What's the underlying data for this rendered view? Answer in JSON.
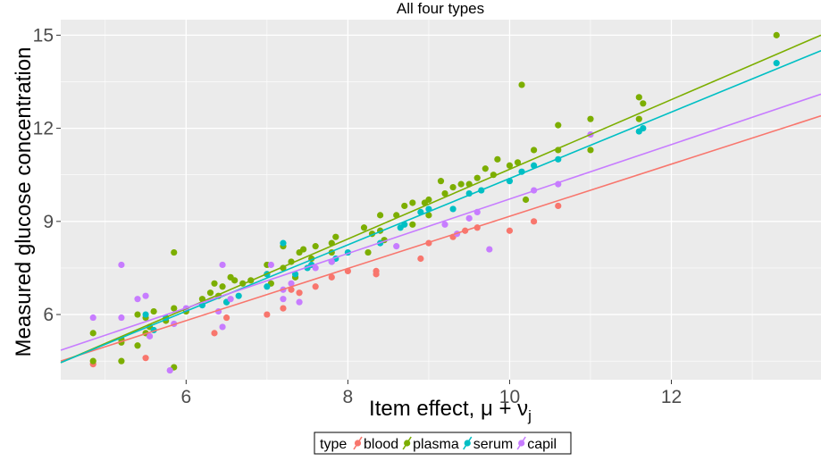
{
  "chart_data": {
    "type": "scatter",
    "title": "All four types",
    "xlabel": "Item effect, μ + ν",
    "xlabel_subscript": "j",
    "ylabel": "Measured glucose concentration",
    "xlim": [
      4.45,
      13.85
    ],
    "ylim": [
      3.9,
      15.5
    ],
    "xticks": [
      6,
      8,
      10,
      12
    ],
    "xtick_labels": [
      "6",
      "8",
      "10",
      "12"
    ],
    "yticks": [
      6,
      9,
      12,
      15
    ],
    "ytick_labels": [
      "6",
      "9",
      "12",
      "15"
    ],
    "grid": true,
    "legend": {
      "position": "bottom",
      "title": "type",
      "entries": [
        "blood",
        "plasma",
        "serum",
        "capil"
      ]
    },
    "series": [
      {
        "name": "blood",
        "color": "#F8766D",
        "fit": [
          [
            4.45,
            4.5
          ],
          [
            13.85,
            12.4
          ]
        ],
        "points": [
          [
            4.85,
            4.4
          ],
          [
            5.5,
            4.6
          ],
          [
            6.35,
            5.4
          ],
          [
            6.5,
            5.9
          ],
          [
            7.0,
            6.0
          ],
          [
            7.2,
            6.2
          ],
          [
            7.3,
            6.8
          ],
          [
            7.4,
            6.7
          ],
          [
            7.6,
            6.9
          ],
          [
            7.8,
            7.2
          ],
          [
            8.0,
            7.4
          ],
          [
            8.35,
            7.4
          ],
          [
            8.35,
            7.3
          ],
          [
            8.9,
            7.8
          ],
          [
            9.0,
            8.3
          ],
          [
            9.3,
            8.5
          ],
          [
            9.45,
            8.7
          ],
          [
            9.6,
            8.8
          ],
          [
            10.0,
            8.7
          ],
          [
            10.3,
            9.0
          ],
          [
            10.6,
            9.5
          ]
        ]
      },
      {
        "name": "plasma",
        "color": "#7CAE00",
        "fit": [
          [
            4.45,
            4.45
          ],
          [
            13.85,
            15.0
          ]
        ],
        "points": [
          [
            4.85,
            4.5
          ],
          [
            4.85,
            5.4
          ],
          [
            5.2,
            5.1
          ],
          [
            5.2,
            4.5
          ],
          [
            5.2,
            5.2
          ],
          [
            5.4,
            5.0
          ],
          [
            5.4,
            6.0
          ],
          [
            5.5,
            5.4
          ],
          [
            5.5,
            5.9
          ],
          [
            5.55,
            5.6
          ],
          [
            5.6,
            6.1
          ],
          [
            5.75,
            5.8
          ],
          [
            5.85,
            6.2
          ],
          [
            5.85,
            8.0
          ],
          [
            5.85,
            4.3
          ],
          [
            6.0,
            6.1
          ],
          [
            6.2,
            6.5
          ],
          [
            6.3,
            6.7
          ],
          [
            6.35,
            7.0
          ],
          [
            6.4,
            6.6
          ],
          [
            6.45,
            6.9
          ],
          [
            6.5,
            6.4
          ],
          [
            6.55,
            7.2
          ],
          [
            6.6,
            7.1
          ],
          [
            6.7,
            7.0
          ],
          [
            6.8,
            7.1
          ],
          [
            7.0,
            7.3
          ],
          [
            7.0,
            7.6
          ],
          [
            7.05,
            7.0
          ],
          [
            7.2,
            7.5
          ],
          [
            7.2,
            8.2
          ],
          [
            7.3,
            7.7
          ],
          [
            7.35,
            7.2
          ],
          [
            7.4,
            8.0
          ],
          [
            7.45,
            8.1
          ],
          [
            7.55,
            7.8
          ],
          [
            7.6,
            8.2
          ],
          [
            7.8,
            8.3
          ],
          [
            7.8,
            8.0
          ],
          [
            7.85,
            8.5
          ],
          [
            8.2,
            8.8
          ],
          [
            8.25,
            8.0
          ],
          [
            8.3,
            8.6
          ],
          [
            8.4,
            8.7
          ],
          [
            8.4,
            9.2
          ],
          [
            8.45,
            8.4
          ],
          [
            8.6,
            9.2
          ],
          [
            8.7,
            9.5
          ],
          [
            8.8,
            9.6
          ],
          [
            8.8,
            8.9
          ],
          [
            8.95,
            9.6
          ],
          [
            9.0,
            9.2
          ],
          [
            9.0,
            9.7
          ],
          [
            9.15,
            10.3
          ],
          [
            9.2,
            9.9
          ],
          [
            9.3,
            10.1
          ],
          [
            9.4,
            10.2
          ],
          [
            9.5,
            10.2
          ],
          [
            9.6,
            10.4
          ],
          [
            9.7,
            10.7
          ],
          [
            9.8,
            10.5
          ],
          [
            9.85,
            11.0
          ],
          [
            10.0,
            10.8
          ],
          [
            10.1,
            10.9
          ],
          [
            10.15,
            13.4
          ],
          [
            10.2,
            9.7
          ],
          [
            10.3,
            11.3
          ],
          [
            10.6,
            12.1
          ],
          [
            10.6,
            11.3
          ],
          [
            11.0,
            12.3
          ],
          [
            11.0,
            11.3
          ],
          [
            11.6,
            13.0
          ],
          [
            11.6,
            12.3
          ],
          [
            11.65,
            12.8
          ],
          [
            13.3,
            15.0
          ]
        ]
      },
      {
        "name": "serum",
        "color": "#00BFC4",
        "fit": [
          [
            4.45,
            4.45
          ],
          [
            13.85,
            14.5
          ]
        ],
        "points": [
          [
            5.5,
            6.0
          ],
          [
            5.6,
            5.5
          ],
          [
            5.75,
            5.9
          ],
          [
            6.2,
            6.3
          ],
          [
            6.5,
            6.4
          ],
          [
            6.65,
            6.6
          ],
          [
            7.0,
            6.9
          ],
          [
            7.0,
            7.3
          ],
          [
            7.2,
            8.3
          ],
          [
            7.35,
            7.3
          ],
          [
            7.5,
            7.5
          ],
          [
            7.55,
            7.6
          ],
          [
            7.8,
            7.7
          ],
          [
            7.85,
            7.8
          ],
          [
            8.0,
            8.0
          ],
          [
            8.4,
            8.3
          ],
          [
            8.65,
            8.8
          ],
          [
            8.7,
            8.9
          ],
          [
            8.9,
            9.3
          ],
          [
            9.0,
            9.4
          ],
          [
            9.3,
            9.4
          ],
          [
            9.5,
            9.9
          ],
          [
            9.65,
            10.0
          ],
          [
            10.0,
            10.3
          ],
          [
            10.15,
            10.6
          ],
          [
            10.3,
            10.8
          ],
          [
            10.6,
            11.0
          ],
          [
            11.6,
            11.9
          ],
          [
            11.65,
            12.0
          ],
          [
            13.3,
            14.1
          ]
        ]
      },
      {
        "name": "capil",
        "color": "#C77CFF",
        "fit": [
          [
            4.45,
            4.85
          ],
          [
            13.85,
            13.1
          ]
        ],
        "points": [
          [
            4.85,
            5.9
          ],
          [
            5.2,
            5.9
          ],
          [
            5.2,
            7.6
          ],
          [
            5.4,
            6.5
          ],
          [
            5.5,
            6.6
          ],
          [
            5.55,
            5.3
          ],
          [
            5.8,
            4.2
          ],
          [
            5.85,
            5.7
          ],
          [
            6.0,
            6.2
          ],
          [
            6.4,
            6.1
          ],
          [
            6.45,
            7.6
          ],
          [
            6.45,
            5.6
          ],
          [
            6.55,
            6.5
          ],
          [
            7.05,
            7.6
          ],
          [
            7.2,
            6.5
          ],
          [
            7.2,
            6.8
          ],
          [
            7.3,
            7.0
          ],
          [
            7.4,
            6.4
          ],
          [
            7.6,
            7.5
          ],
          [
            7.8,
            7.7
          ],
          [
            8.6,
            8.2
          ],
          [
            9.2,
            8.9
          ],
          [
            9.35,
            8.6
          ],
          [
            9.5,
            9.1
          ],
          [
            9.6,
            9.3
          ],
          [
            9.75,
            8.1
          ],
          [
            10.3,
            10.0
          ],
          [
            10.6,
            10.2
          ],
          [
            11.0,
            11.8
          ]
        ]
      }
    ]
  }
}
